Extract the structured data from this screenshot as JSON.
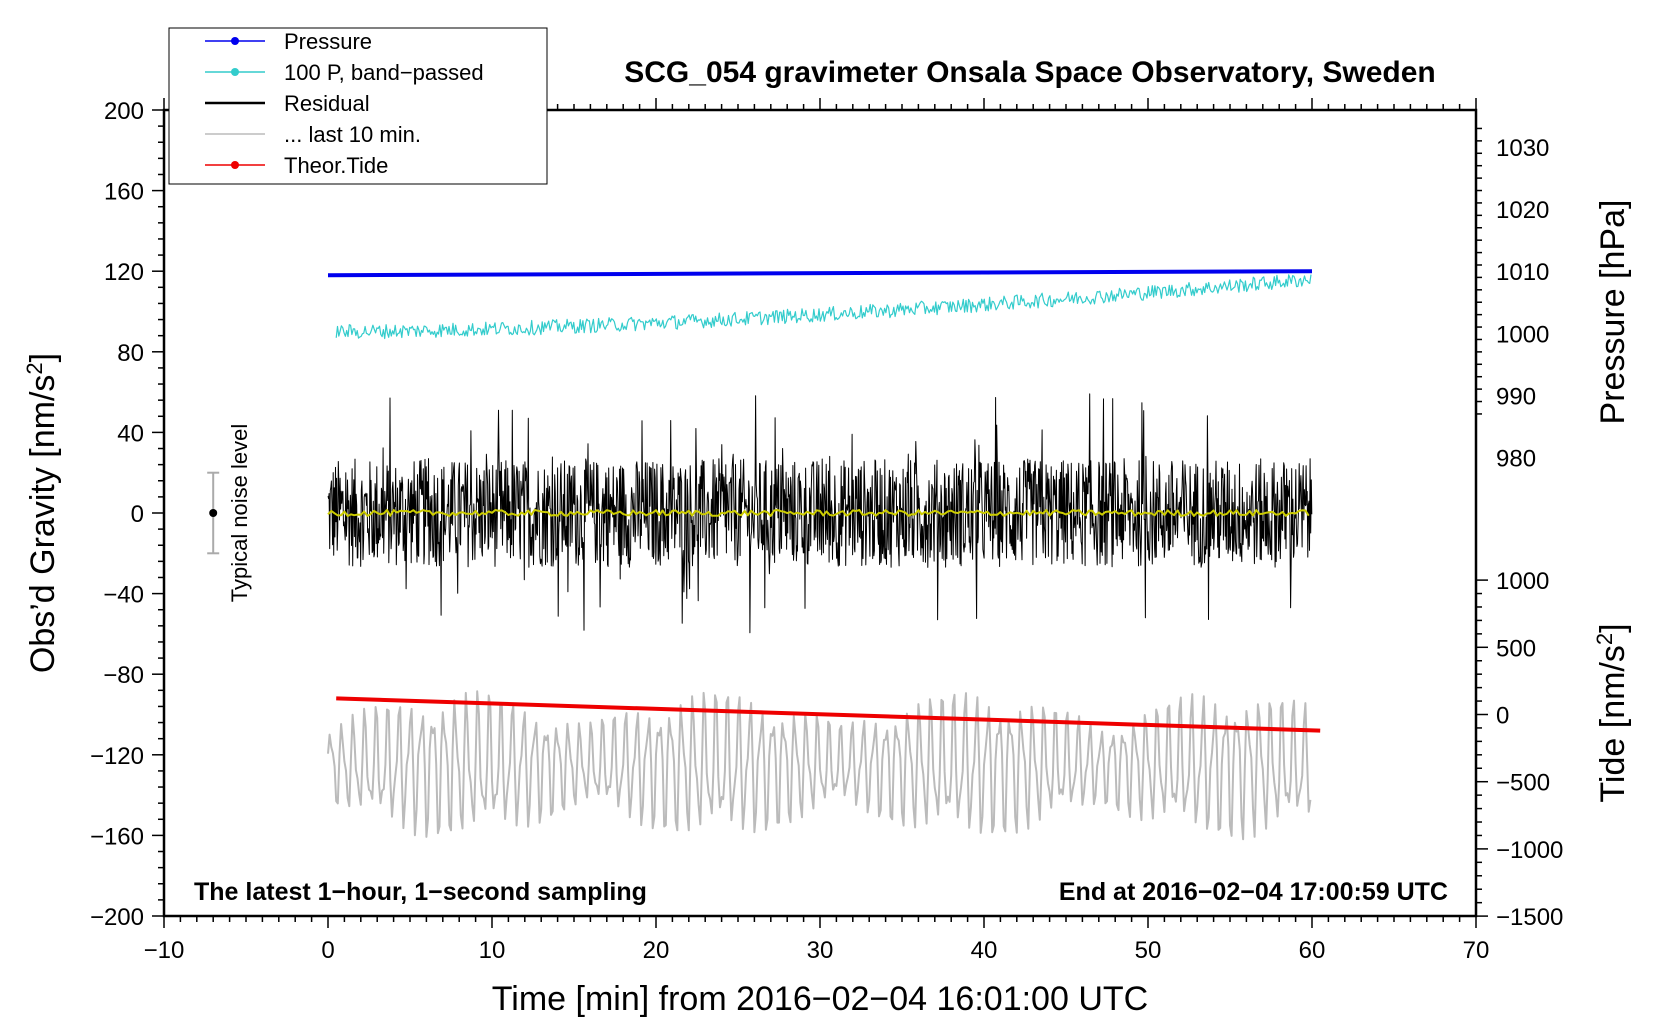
{
  "chart_data": {
    "type": "line",
    "title": "SCG_054 gravimeter Onsala Space Observatory, Sweden",
    "xlabel": "Time [min] from 2016−02−04 16:01:00 UTC",
    "ylabel_main": "Obs’d Gravity [nm/s",
    "ylabel_main_sup": "2",
    "ylabel_main_end": "]",
    "ylabel_pressure": "Pressure [hPa]",
    "ylabel_tide": "Tide [nm/s",
    "ylabel_tide_sup": "2",
    "ylabel_tide_end": "]",
    "xlim": [
      -10,
      70
    ],
    "ylim": [
      -200,
      200
    ],
    "x_ticks": [
      "−10",
      "0",
      "10",
      "20",
      "30",
      "40",
      "50",
      "60",
      "70"
    ],
    "x_tick_values": [
      -10,
      0,
      10,
      20,
      30,
      40,
      50,
      60,
      70
    ],
    "y_ticks": [
      "200",
      "160",
      "120",
      "80",
      "40",
      "0",
      "−40",
      "−80",
      "−120",
      "−160",
      "−200"
    ],
    "y_tick_values": [
      200,
      160,
      120,
      80,
      40,
      0,
      -40,
      -80,
      -120,
      -160,
      -200
    ],
    "pressure_axis": {
      "ticks": [
        "1030",
        "1020",
        "1010",
        "1000",
        "990",
        "980"
      ],
      "values": [
        1030,
        1020,
        1010,
        1000,
        990,
        980
      ],
      "gravity_at_1010": 120,
      "gravity_per_hpa": 3.08
    },
    "tide_axis": {
      "ticks": [
        "1000",
        "500",
        "0",
        "−500",
        "−1000",
        "−1500"
      ],
      "values": [
        1000,
        500,
        0,
        -500,
        -1000,
        -1500
      ],
      "gravity_at_0": -100,
      "gravity_per_unit": 0.0667
    },
    "legend": [
      {
        "label": "Pressure",
        "color": "#0000ee",
        "marker": true
      },
      {
        "label": "100 P, band−passed",
        "color": "#33cccc",
        "marker": true
      },
      {
        "label": "Residual",
        "color": "#000000",
        "marker": false
      },
      {
        "label": "... last 10 min.",
        "color": "#bbbbbb",
        "marker": false
      },
      {
        "label": "Theor.Tide",
        "color": "#ee0000",
        "marker": true
      }
    ],
    "series": [
      {
        "name": "Pressure",
        "color": "#0000ee",
        "x_range": [
          0,
          60
        ],
        "y_start": 118,
        "y_end": 120
      },
      {
        "name": "100 P, band−passed",
        "color": "#33cccc",
        "x_range": [
          0.5,
          60
        ],
        "y_start": 90,
        "y_end": 116,
        "noise_amplitude": 6
      },
      {
        "name": "Residual",
        "color": "#000000",
        "x_range": [
          0,
          60
        ],
        "y_center": 0,
        "amplitude": 60
      },
      {
        "name": "Residual (smoothed)",
        "color": "#cccc00",
        "x_range": [
          0,
          60
        ],
        "y_center": 0
      },
      {
        "name": "... last 10 min.",
        "color": "#bbbbbb",
        "x_range": [
          0,
          60
        ],
        "y_center": -125,
        "amplitude": 40
      },
      {
        "name": "Theor.Tide",
        "color": "#ee0000",
        "x_range": [
          0.5,
          60.5
        ],
        "y_start": -92,
        "y_end": -108
      }
    ],
    "noise_bar": {
      "label": "Typical noise level",
      "x": -7,
      "y": 0,
      "half_range": 20
    },
    "annotation_left": "The latest 1−hour, 1−second sampling",
    "annotation_right": "End at 2016−02−04 17:00:59 UTC"
  }
}
